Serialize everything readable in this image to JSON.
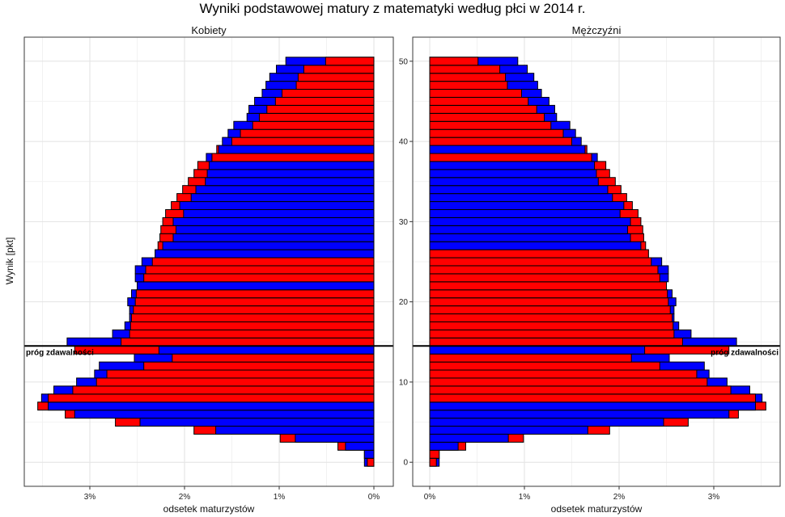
{
  "chart_data": {
    "type": "bar",
    "orientation": "horizontal",
    "title": "Wyniki podstawowej matury z matematyki według płci w 2014 r.",
    "ylabel": "Wynik [pkt]",
    "xlabel": "odsetek maturzystów",
    "y_ticks": [
      0,
      10,
      20,
      30,
      40,
      50
    ],
    "x_ticks": [
      "0%",
      "1%",
      "2%",
      "3%"
    ],
    "xlim": [
      0,
      3.7
    ],
    "ylim": [
      -3,
      53
    ],
    "grid": true,
    "threshold": {
      "score": 14.5,
      "label": "próg zdawalności"
    },
    "colors": {
      "women": "#ff0000",
      "men": "#0000ff",
      "threshold": "#000000"
    },
    "panels": [
      {
        "name": "Kobiety",
        "reversed": true,
        "fill_series": "women",
        "outline_series": "men",
        "scores": [
          0,
          1,
          2,
          3,
          4,
          5,
          6,
          7,
          8,
          9,
          10,
          11,
          12,
          13,
          14,
          15,
          16,
          17,
          18,
          19,
          20,
          21,
          22,
          23,
          24,
          25,
          26,
          27,
          28,
          29,
          30,
          31,
          32,
          33,
          34,
          35,
          36,
          37,
          38,
          39,
          40,
          41,
          42,
          43,
          44,
          45,
          46,
          47,
          48,
          49,
          50
        ],
        "women": [
          0.07,
          0.1,
          0.38,
          0.99,
          1.9,
          2.73,
          3.26,
          3.55,
          3.44,
          3.18,
          2.93,
          2.82,
          2.43,
          2.13,
          3.16,
          2.67,
          2.58,
          2.57,
          2.56,
          2.54,
          2.52,
          2.51,
          2.5,
          2.43,
          2.41,
          2.34,
          2.31,
          2.28,
          2.26,
          2.25,
          2.23,
          2.2,
          2.14,
          2.08,
          2.02,
          1.96,
          1.9,
          1.86,
          1.71,
          1.66,
          1.5,
          1.41,
          1.28,
          1.21,
          1.13,
          1.04,
          0.97,
          0.82,
          0.8,
          0.74,
          0.51
        ],
        "men": [
          0.1,
          0.1,
          0.3,
          0.83,
          1.67,
          2.47,
          3.16,
          3.44,
          3.51,
          3.38,
          3.14,
          2.95,
          2.9,
          2.53,
          2.27,
          3.24,
          2.76,
          2.63,
          2.58,
          2.58,
          2.6,
          2.56,
          2.5,
          2.52,
          2.52,
          2.45,
          2.31,
          2.23,
          2.12,
          2.09,
          2.12,
          2.01,
          2.05,
          1.93,
          1.88,
          1.78,
          1.76,
          1.74,
          1.77,
          1.64,
          1.6,
          1.54,
          1.48,
          1.34,
          1.32,
          1.26,
          1.18,
          1.14,
          1.1,
          1.03,
          0.93
        ]
      },
      {
        "name": "Mężczyźni",
        "reversed": false,
        "fill_series": "men",
        "outline_series": "women",
        "scores": [
          0,
          1,
          2,
          3,
          4,
          5,
          6,
          7,
          8,
          9,
          10,
          11,
          12,
          13,
          14,
          15,
          16,
          17,
          18,
          19,
          20,
          21,
          22,
          23,
          24,
          25,
          26,
          27,
          28,
          29,
          30,
          31,
          32,
          33,
          34,
          35,
          36,
          37,
          38,
          39,
          40,
          41,
          42,
          43,
          44,
          45,
          46,
          47,
          48,
          49,
          50
        ],
        "men": [
          0.1,
          0.1,
          0.3,
          0.83,
          1.67,
          2.47,
          3.16,
          3.44,
          3.51,
          3.38,
          3.14,
          2.95,
          2.9,
          2.53,
          2.27,
          3.24,
          2.76,
          2.63,
          2.58,
          2.58,
          2.6,
          2.56,
          2.5,
          2.52,
          2.52,
          2.45,
          2.31,
          2.23,
          2.12,
          2.09,
          2.12,
          2.01,
          2.05,
          1.93,
          1.88,
          1.78,
          1.76,
          1.74,
          1.77,
          1.64,
          1.6,
          1.54,
          1.48,
          1.34,
          1.32,
          1.26,
          1.18,
          1.14,
          1.1,
          1.03,
          0.93
        ],
        "women": [
          0.07,
          0.1,
          0.38,
          0.99,
          1.9,
          2.73,
          3.26,
          3.55,
          3.44,
          3.18,
          2.93,
          2.82,
          2.43,
          2.13,
          3.16,
          2.67,
          2.58,
          2.57,
          2.56,
          2.54,
          2.52,
          2.51,
          2.5,
          2.43,
          2.41,
          2.34,
          2.31,
          2.28,
          2.26,
          2.25,
          2.23,
          2.2,
          2.14,
          2.08,
          2.02,
          1.96,
          1.9,
          1.86,
          1.71,
          1.66,
          1.5,
          1.41,
          1.28,
          1.21,
          1.13,
          1.04,
          0.97,
          0.82,
          0.8,
          0.74,
          0.51
        ]
      }
    ]
  }
}
